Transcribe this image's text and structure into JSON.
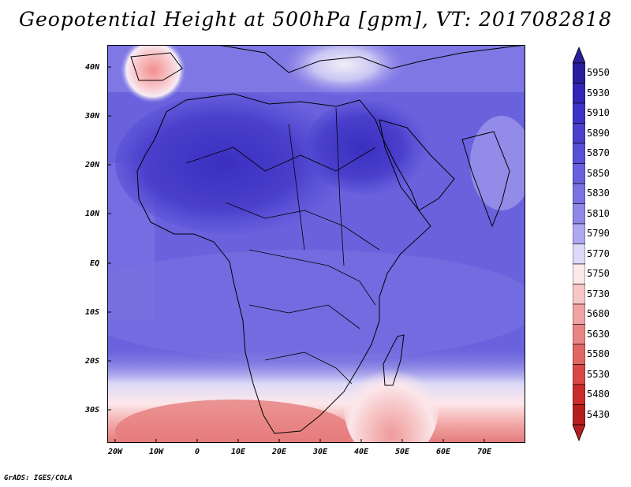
{
  "title": "Geopotential Height at 500hPa [gpm], VT: 2017082818",
  "footer": "GrADS: IGES/COLA",
  "map": {
    "lat_labels": [
      "40N",
      "30N",
      "20N",
      "10N",
      "EQ",
      "10S",
      "20S",
      "30S"
    ],
    "lon_labels": [
      "20W",
      "10W",
      "0",
      "10E",
      "20E",
      "30E",
      "40E",
      "50E",
      "60E",
      "70E"
    ]
  },
  "legend": {
    "levels": [
      "5950",
      "5930",
      "5910",
      "5890",
      "5870",
      "5850",
      "5830",
      "5810",
      "5790",
      "5770",
      "5750",
      "5730",
      "5680",
      "5630",
      "5580",
      "5530",
      "5480",
      "5430"
    ],
    "colors": [
      "#2a1f9c",
      "#3226b6",
      "#3d33c4",
      "#4a40cc",
      "#5850d6",
      "#6860dc",
      "#7a72e2",
      "#8f88e9",
      "#aea9f0",
      "#dcdaf8",
      "#fde8ea",
      "#f7c6c6",
      "#f0a3a3",
      "#e98484",
      "#e06666",
      "#d84848",
      "#c92c2c",
      "#b51e1e"
    ]
  }
}
